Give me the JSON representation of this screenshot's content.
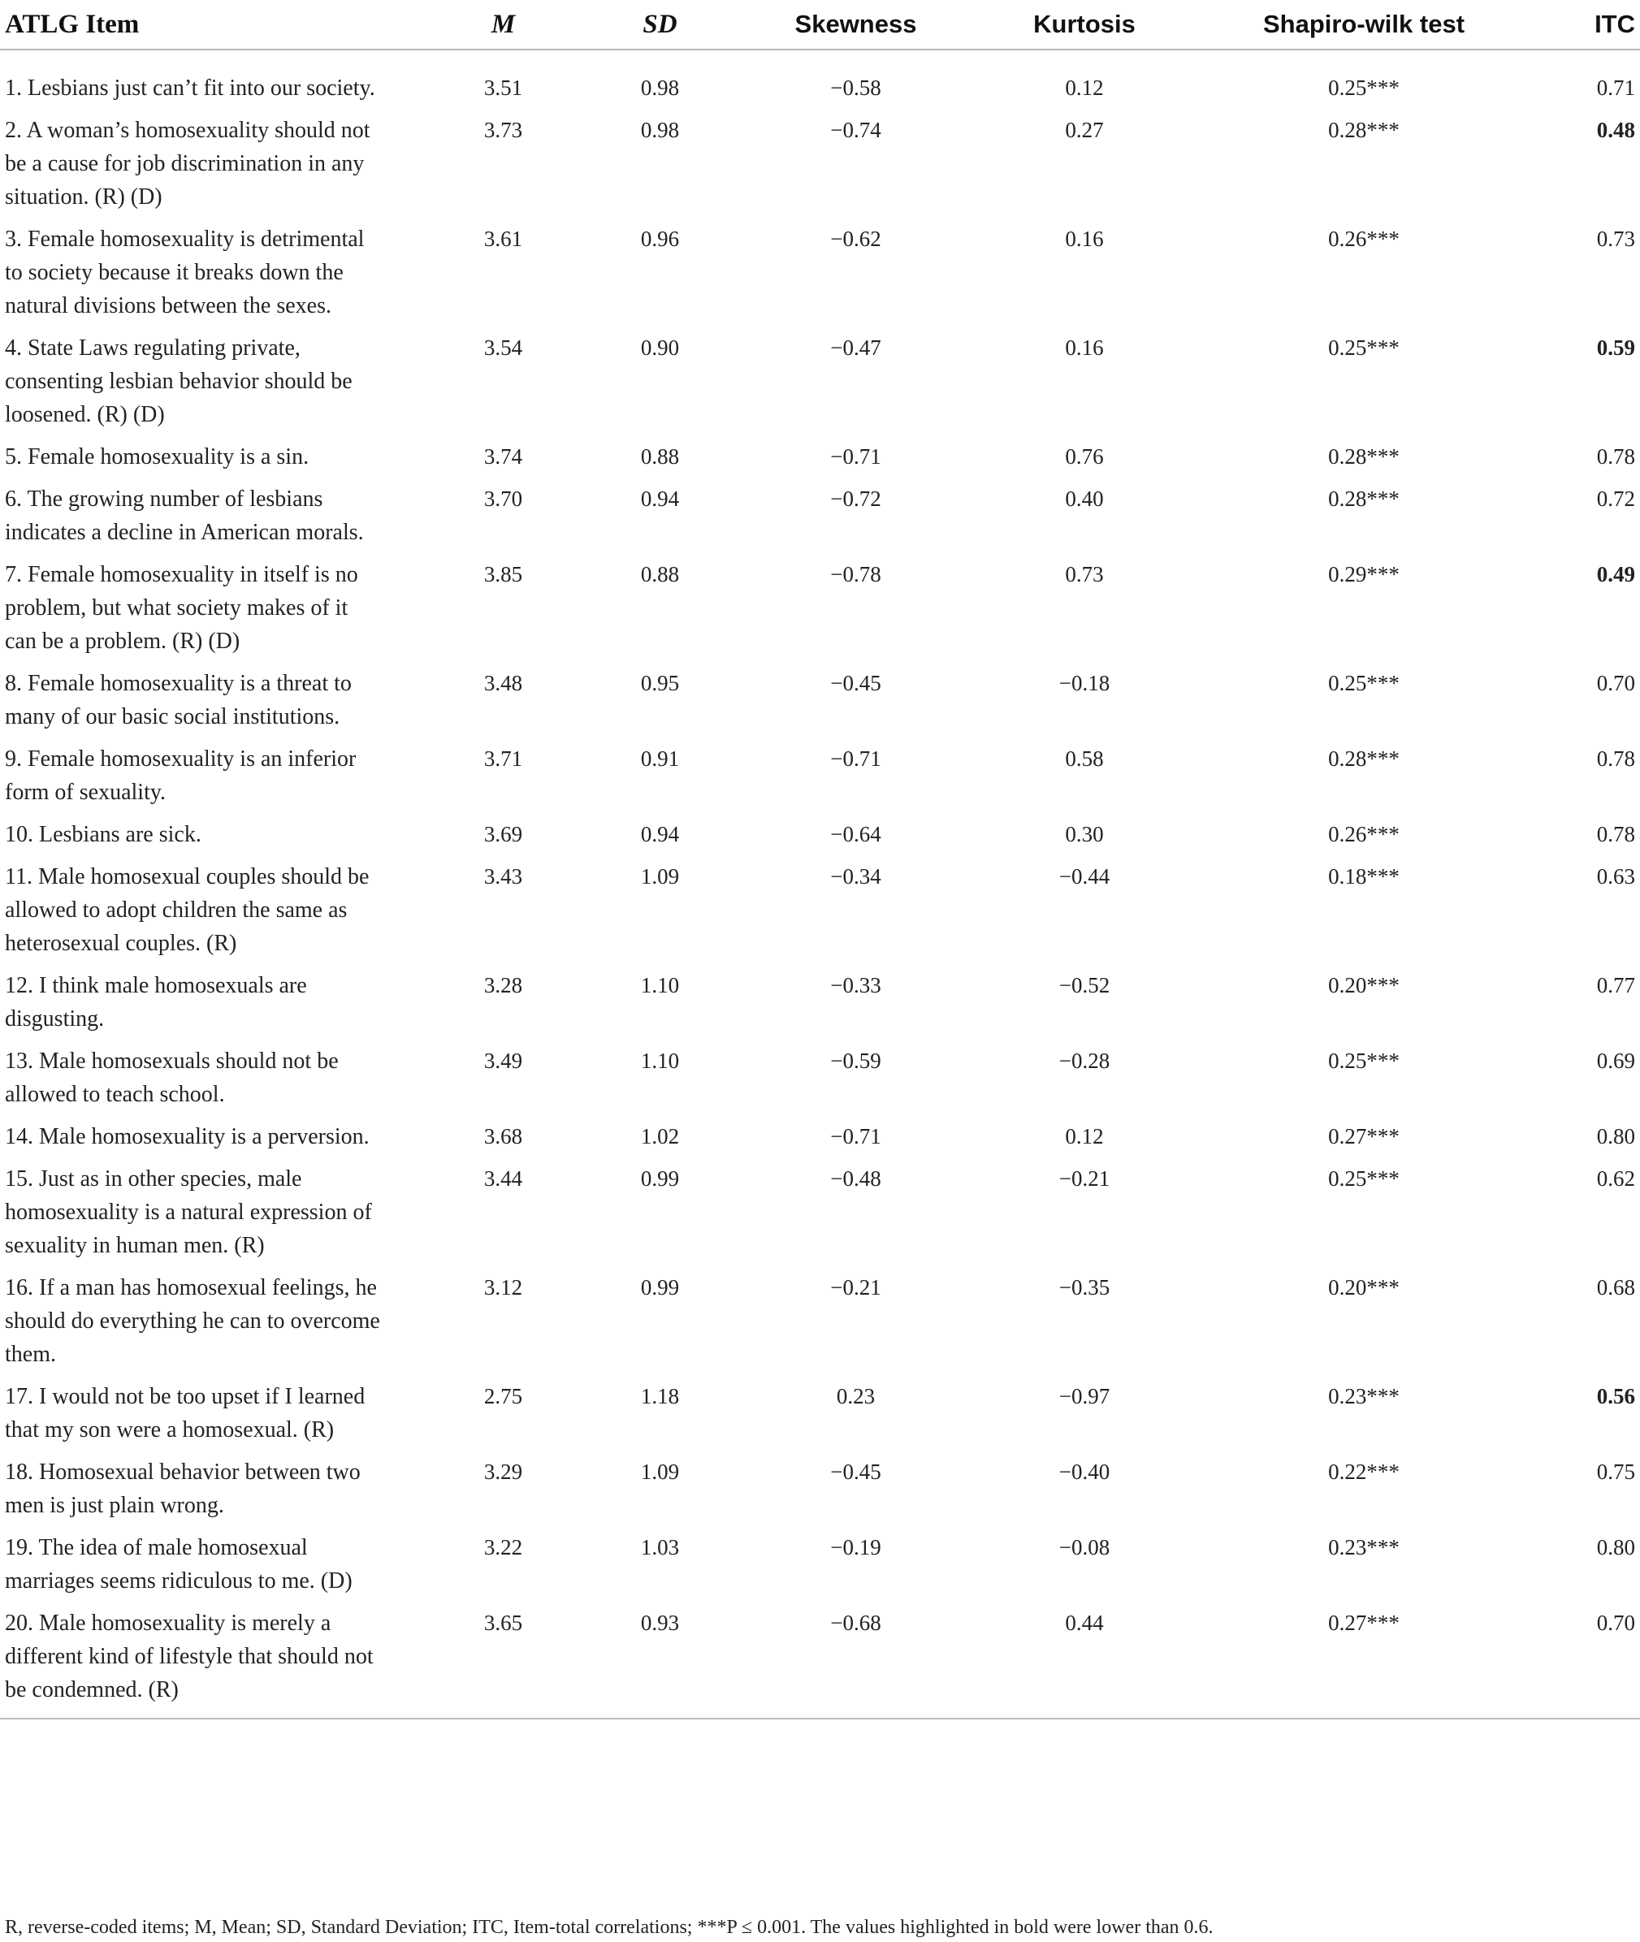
{
  "table": {
    "header": [
      "ATLG Item",
      "M",
      "SD",
      "Skewness",
      "Kurtosis",
      "Shapiro-wilk test",
      "ITC"
    ],
    "rows": [
      [
        "1. Lesbians just can’t fit into our society.",
        "3.51",
        "0.98",
        "−0.58",
        "0.12",
        "0.25***",
        "0.71"
      ],
      [
        "2. A woman’s homosexuality should not be a cause for job discrimination in any situation. (R) (D)",
        "3.73",
        "0.98",
        "−0.74",
        "0.27",
        "0.28***",
        {
          "text": "0.48",
          "bold": true
        }
      ],
      [
        "3. Female homosexuality is detrimental to society because it breaks down the natural divisions between the sexes.",
        "3.61",
        "0.96",
        "−0.62",
        "0.16",
        "0.26***",
        "0.73"
      ],
      [
        "4. State Laws regulating private, consenting lesbian behavior should be loosened. (R) (D)",
        "3.54",
        "0.90",
        "−0.47",
        "0.16",
        "0.25***",
        {
          "text": "0.59",
          "bold": true
        }
      ],
      [
        "5. Female homosexuality is a sin.",
        "3.74",
        "0.88",
        "−0.71",
        "0.76",
        "0.28***",
        "0.78"
      ],
      [
        "6. The growing number of lesbians indicates a decline in American morals.",
        "3.70",
        "0.94",
        "−0.72",
        "0.40",
        "0.28***",
        "0.72"
      ],
      [
        "7. Female homosexuality in itself is no problem, but what society makes of it can be a problem. (R) (D)",
        "3.85",
        "0.88",
        "−0.78",
        "0.73",
        "0.29***",
        {
          "text": "0.49",
          "bold": true
        }
      ],
      [
        "8. Female homosexuality is a threat to many of our basic social institutions.",
        "3.48",
        "0.95",
        "−0.45",
        "−0.18",
        "0.25***",
        "0.70"
      ],
      [
        "9. Female homosexuality is an inferior form of sexuality.",
        "3.71",
        "0.91",
        "−0.71",
        "0.58",
        "0.28***",
        "0.78"
      ],
      [
        "10. Lesbians are sick.",
        "3.69",
        "0.94",
        "−0.64",
        "0.30",
        "0.26***",
        "0.78"
      ],
      [
        "11. Male homosexual couples should be allowed to adopt children the same as heterosexual couples. (R)",
        "3.43",
        "1.09",
        "−0.34",
        "−0.44",
        "0.18***",
        "0.63"
      ],
      [
        "12. I think male homosexuals are disgusting.",
        "3.28",
        "1.10",
        "−0.33",
        "−0.52",
        "0.20***",
        "0.77"
      ],
      [
        "13. Male homosexuals should not be allowed to teach school.",
        "3.49",
        "1.10",
        "−0.59",
        "−0.28",
        "0.25***",
        "0.69"
      ],
      [
        "14. Male homosexuality is a perversion.",
        "3.68",
        "1.02",
        "−0.71",
        "0.12",
        "0.27***",
        "0.80"
      ],
      [
        "15. Just as in other species, male homosexuality is a natural expression of sexuality in human men. (R)",
        "3.44",
        "0.99",
        "−0.48",
        "−0.21",
        "0.25***",
        "0.62"
      ],
      [
        "16. If a man has homosexual feelings, he should do everything he can to overcome them.",
        "3.12",
        "0.99",
        "−0.21",
        "−0.35",
        "0.20***",
        "0.68"
      ],
      [
        "17. I would not be too upset if I learned that my son were a homosexual. (R)",
        "2.75",
        "1.18",
        "0.23",
        "−0.97",
        "0.23***",
        {
          "text": "0.56",
          "bold": true
        }
      ],
      [
        "18. Homosexual behavior between two men is just plain wrong.",
        "3.29",
        "1.09",
        "−0.45",
        "−0.40",
        "0.22***",
        "0.75"
      ],
      [
        "19. The idea of male homosexual marriages seems ridiculous to me. (D)",
        "3.22",
        "1.03",
        "−0.19",
        "−0.08",
        "0.23***",
        "0.80"
      ],
      [
        "20. Male homosexuality is merely a different kind of lifestyle that should not be condemned. (R)",
        "3.65",
        "0.93",
        "−0.68",
        "0.44",
        "0.27***",
        "0.70"
      ]
    ],
    "footnote": "R, reverse-coded items; M, Mean; SD, Standard Deviation; ITC, Item-total correlations; ***P ≤ 0.001. The values highlighted in bold were lower than 0.6."
  }
}
